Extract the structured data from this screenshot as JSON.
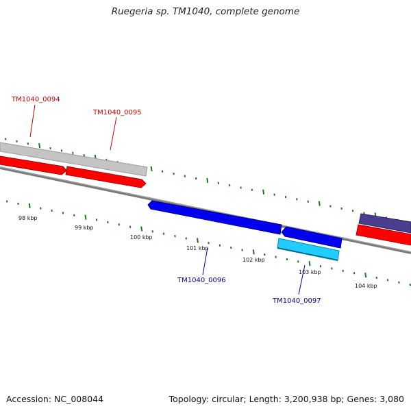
{
  "header": {
    "title": "Ruegeria sp. TM1040, complete genome"
  },
  "footer": {
    "accession": "Accession: NC_008044",
    "summary": "Topology: circular; Length: 3,200,938 bp; Genes: 3,080"
  },
  "scale": {
    "labels": [
      "98 kbp",
      "99 kbp",
      "100 kbp",
      "101 kbp",
      "102 kbp",
      "103 kbp",
      "104 kbp"
    ]
  },
  "genes": [
    {
      "locus": "TM1040_0094",
      "strand": "forward",
      "color": "#cc0000"
    },
    {
      "locus": "TM1040_0095",
      "strand": "forward",
      "color": "#cc0000"
    },
    {
      "locus": "TM1040_0096",
      "strand": "reverse",
      "color": "#000099"
    },
    {
      "locus": "TM1040_0097",
      "strand": "reverse",
      "color": "#000099"
    }
  ],
  "colors": {
    "cds_forward": "#ff0000",
    "cds_reverse": "#0000ee",
    "feature_grey": "#c8c8c8",
    "feature_cyan": "#22ccff",
    "feature_purple": "#4a3f8f",
    "backbone": "#808080",
    "tick": "#1a7a1a"
  }
}
